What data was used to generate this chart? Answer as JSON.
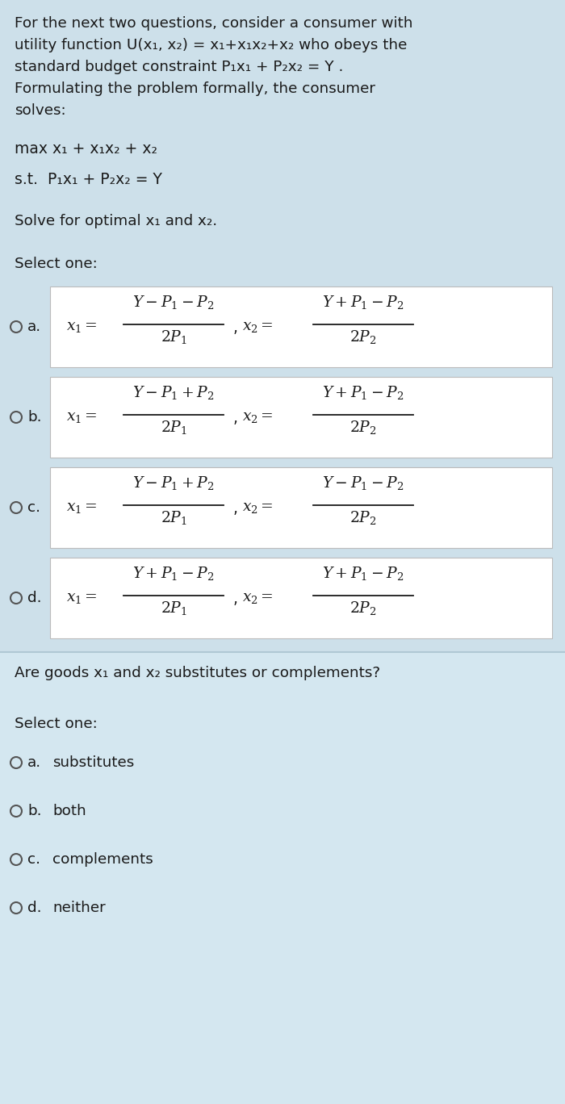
{
  "bg_color": "#cde0ea",
  "bg_color2": "#d4e7f0",
  "white": "#ffffff",
  "text_color": "#1a1a1a",
  "figsize": [
    7.0,
    13.68
  ],
  "dpi": 100,
  "intro_lines": [
    "For the next two questions, consider a consumer with",
    "utility function U(x₁, x₂) = x₁+x₁x₂+x₂ who obeys the",
    "standard budget constraint P₁x₁ + P₂x₂ = Y .",
    "Formulating the problem formally, the consumer",
    "solves:"
  ],
  "option_labels_q1": [
    "a.",
    "b.",
    "c.",
    "d."
  ],
  "option_x1_num": [
    "Y - P_1 - P_2",
    "Y - P_1 + P_2",
    "Y - P_1 + P_2",
    "Y + P_1 - P_2"
  ],
  "option_x1_den": [
    "2P_1",
    "2P_1",
    "2P_1",
    "2P_1"
  ],
  "option_x2_num": [
    "Y + P_1 - P_2",
    "Y + P_1 - P_2",
    "Y - P_1 - P_2",
    "Y + P_1 - P_2"
  ],
  "option_x2_den": [
    "2P_2",
    "2P_2",
    "2P_2",
    "2P_2"
  ],
  "q2_options": [
    "substitutes",
    "both",
    "complements",
    "neither"
  ],
  "q2_labels": [
    "a.",
    "b.",
    "c.",
    "d."
  ]
}
